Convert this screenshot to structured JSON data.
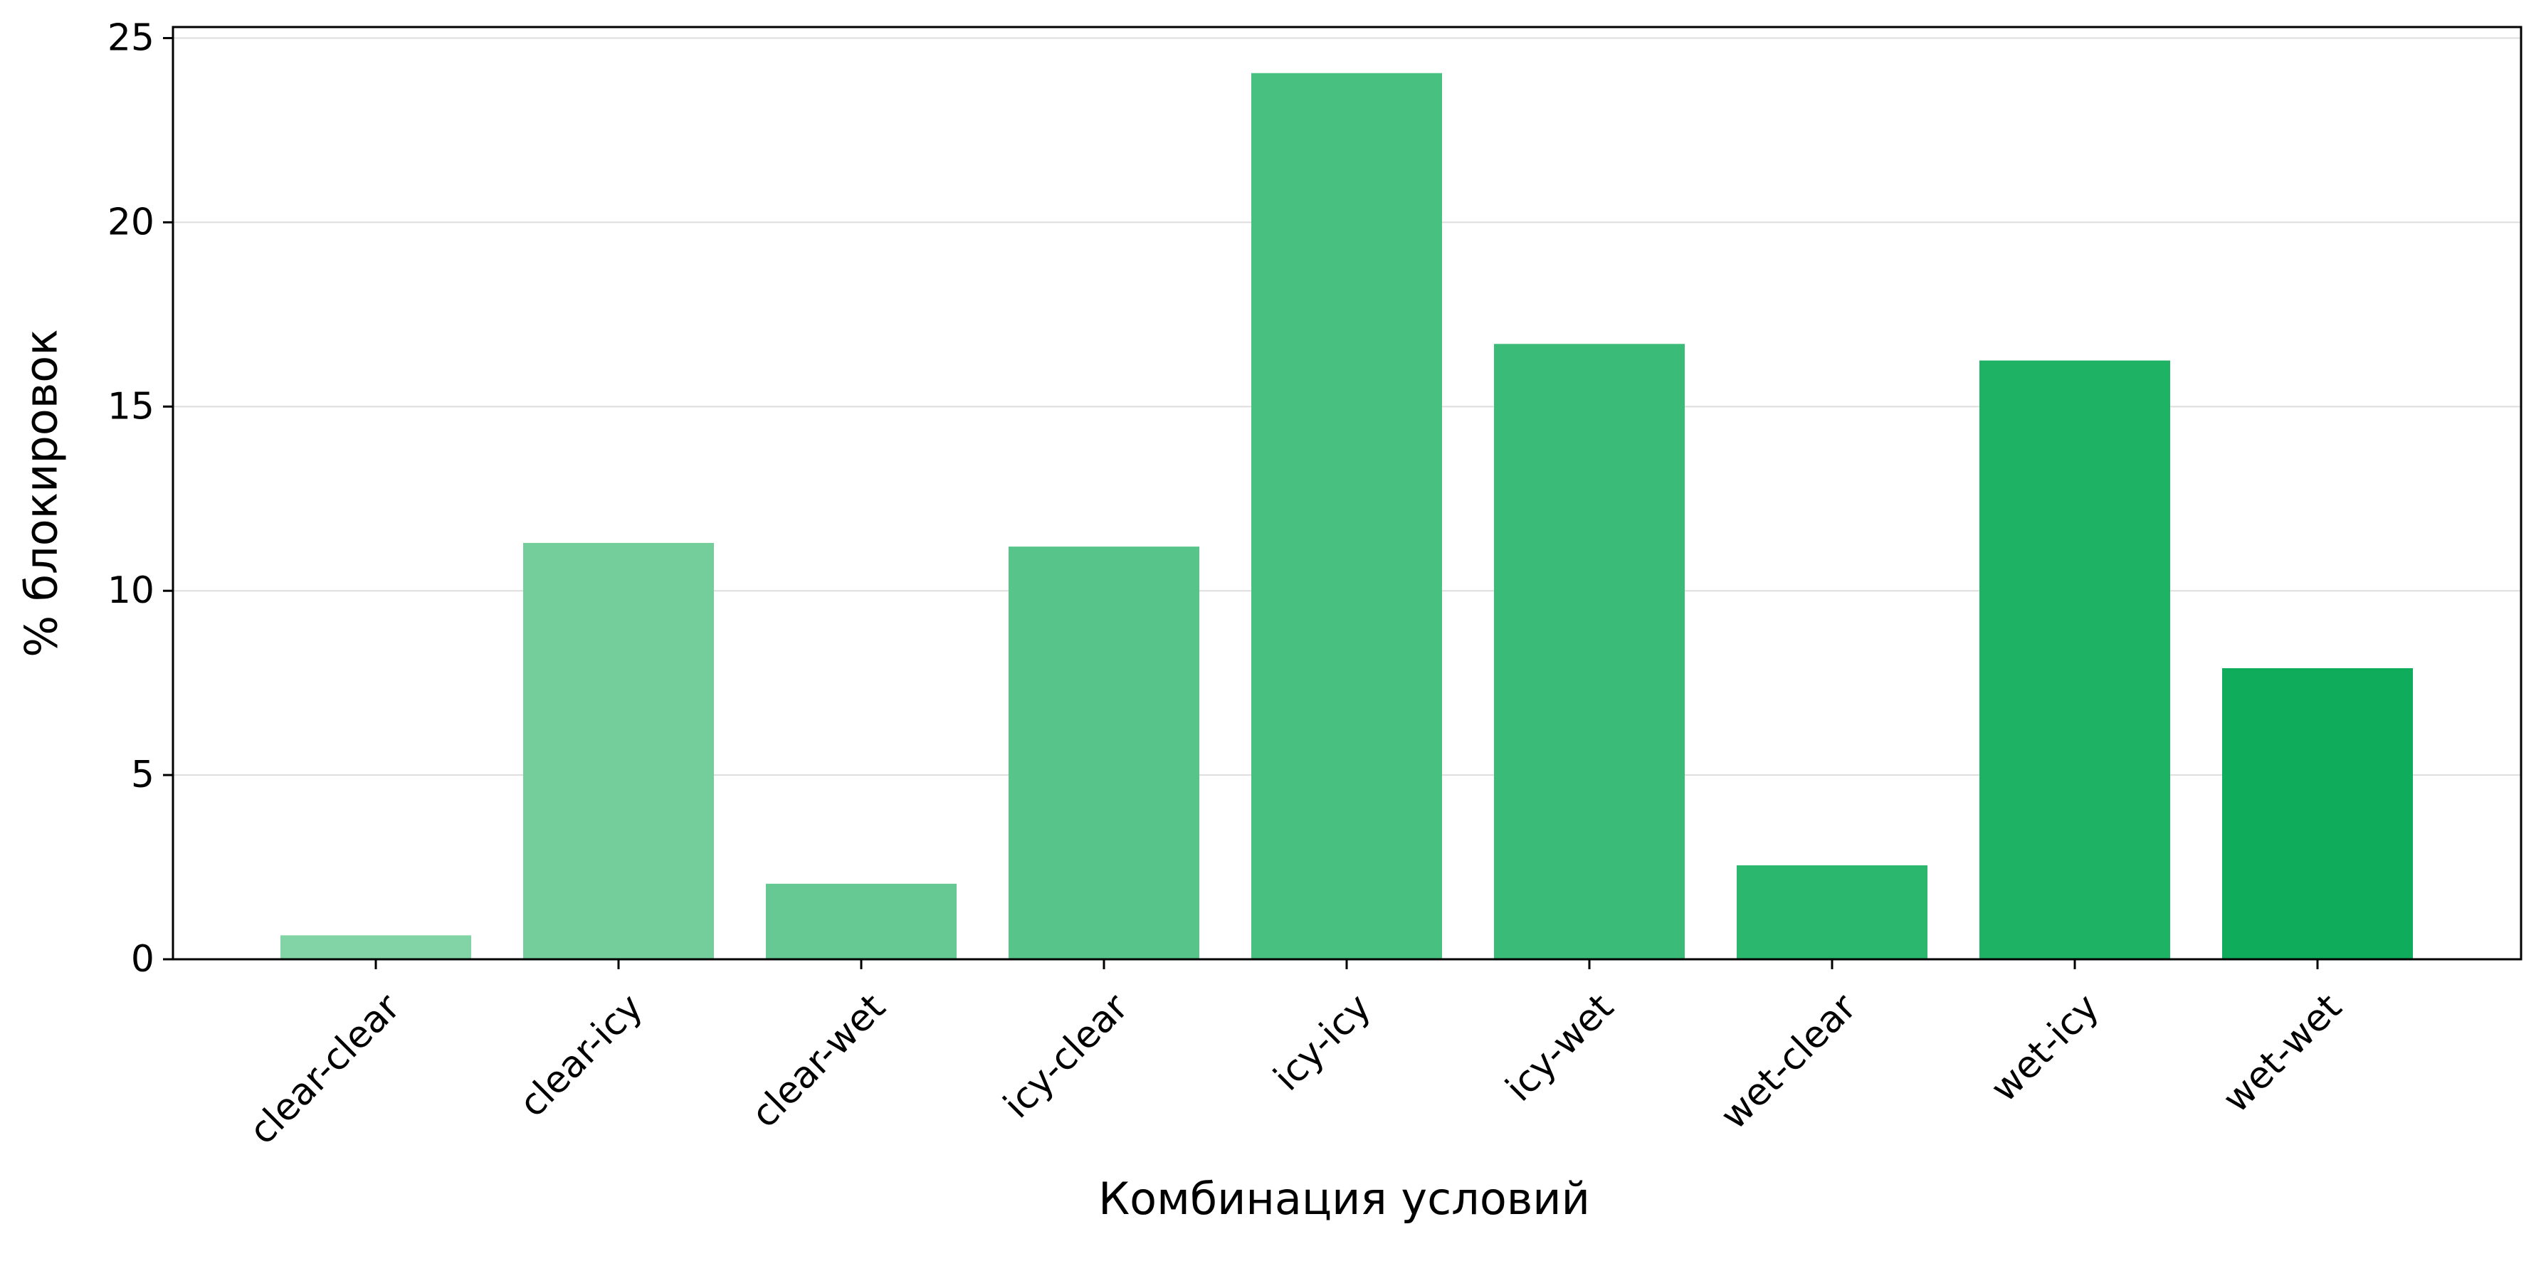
{
  "chart_data": {
    "type": "bar",
    "title": "",
    "xlabel": "Комбинация условий",
    "ylabel": "% блокировок",
    "categories": [
      "clear-clear",
      "clear-icy",
      "clear-wet",
      "icy-clear",
      "icy-icy",
      "icy-wet",
      "wet-clear",
      "wet-icy",
      "wet-wet"
    ],
    "values": [
      0.65,
      11.3,
      2.05,
      11.2,
      24.05,
      16.7,
      2.55,
      16.25,
      7.9
    ],
    "colors": [
      "#82d3a6",
      "#74ce9c",
      "#66c993",
      "#57c58a",
      "#48c080",
      "#3abb77",
      "#2bb76d",
      "#1db264",
      "#0fad5b"
    ],
    "ylim": [
      0,
      25.3
    ],
    "yticks": [
      0,
      5,
      10,
      15,
      20,
      25
    ],
    "grid": "y",
    "legend": "none",
    "tick_rotation_deg": -45
  }
}
